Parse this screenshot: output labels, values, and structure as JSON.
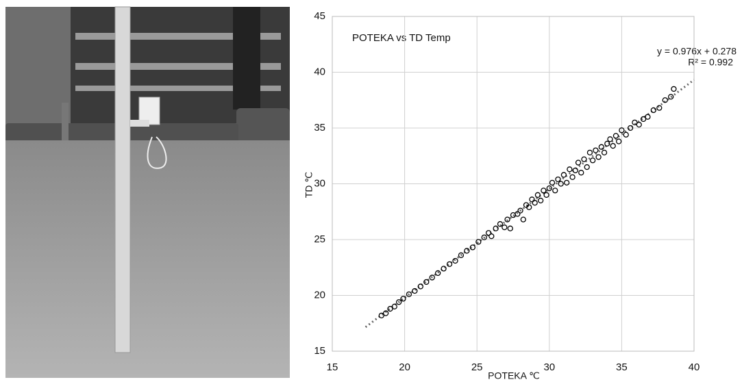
{
  "chart_data": {
    "type": "scatter",
    "title": "POTEKA vs TD Temp",
    "x_label": "POTEKA ℃",
    "y_label": "TD ℃",
    "annotations": [
      "y = 0.976x + 0.278",
      "R² = 0.992"
    ],
    "xlim": [
      15,
      40
    ],
    "ylim": [
      15,
      45
    ],
    "xticks": [
      15,
      20,
      25,
      30,
      35,
      40
    ],
    "yticks": [
      15,
      20,
      25,
      30,
      35,
      40,
      45
    ],
    "grid": true,
    "color": "#000000",
    "trendline": {
      "slope": 0.976,
      "intercept": 0.278,
      "x": [
        17.3,
        40
      ],
      "color": "#666666"
    },
    "x": [
      18.4,
      18.7,
      19.0,
      19.3,
      19.6,
      19.9,
      20.3,
      20.7,
      21.1,
      21.5,
      21.9,
      22.3,
      22.7,
      23.1,
      23.5,
      23.9,
      24.3,
      24.7,
      25.1,
      25.5,
      25.8,
      26.0,
      26.3,
      26.6,
      26.9,
      27.1,
      27.3,
      27.5,
      27.8,
      28.0,
      28.2,
      28.4,
      28.6,
      28.8,
      29.0,
      29.2,
      29.4,
      29.6,
      29.8,
      30.0,
      30.2,
      30.4,
      30.6,
      30.8,
      31.0,
      31.2,
      31.4,
      31.6,
      31.8,
      32.0,
      32.2,
      32.4,
      32.6,
      32.8,
      33.0,
      33.2,
      33.4,
      33.6,
      33.8,
      34.0,
      34.2,
      34.4,
      34.6,
      34.8,
      35.0,
      35.3,
      35.6,
      35.9,
      36.2,
      36.5,
      36.8,
      37.2,
      37.6,
      38.0,
      38.4,
      38.6
    ],
    "values": [
      18.2,
      18.4,
      18.8,
      19.0,
      19.4,
      19.7,
      20.1,
      20.4,
      20.8,
      21.2,
      21.6,
      22.0,
      22.4,
      22.8,
      23.1,
      23.6,
      24.0,
      24.3,
      24.8,
      25.2,
      25.6,
      25.3,
      26.0,
      26.4,
      26.1,
      26.8,
      26.0,
      27.2,
      27.3,
      27.6,
      26.8,
      28.1,
      27.9,
      28.6,
      28.3,
      29.0,
      28.5,
      29.4,
      29.0,
      29.6,
      30.1,
      29.4,
      30.4,
      30.0,
      30.8,
      30.1,
      31.3,
      30.6,
      31.2,
      31.9,
      31.0,
      32.2,
      31.5,
      32.8,
      32.1,
      33.0,
      32.4,
      33.3,
      32.8,
      33.6,
      34.0,
      33.4,
      34.3,
      33.8,
      34.8,
      34.4,
      35.0,
      35.5,
      35.3,
      35.8,
      36.0,
      36.6,
      36.8,
      37.5,
      37.8,
      38.5
    ]
  }
}
